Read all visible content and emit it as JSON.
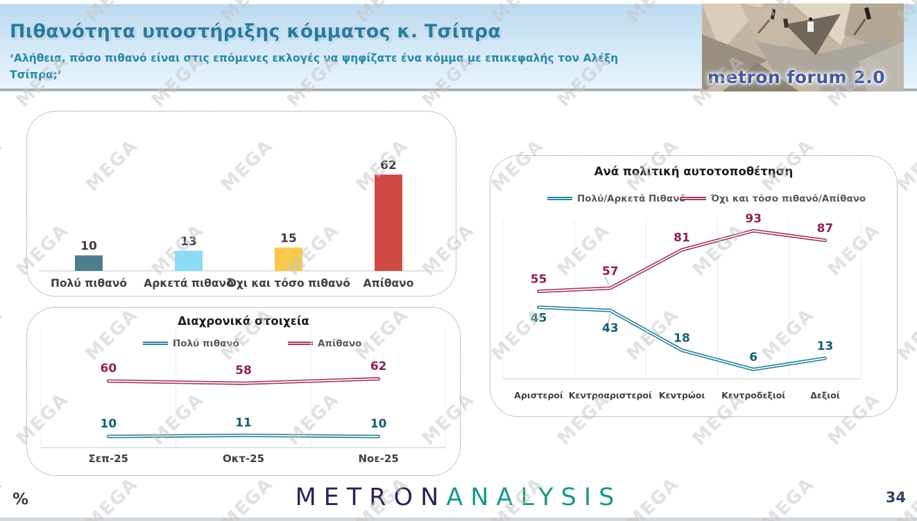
{
  "header": {
    "title": "Πιθανότητα υποστήριξης κόμματος κ. Τσίπρα",
    "subtitle": "‘Αλήθεια, πόσο πιθανό είναι στις επόμενες εκλογές να ψηφίζατε ένα κόμμα με επικεφαλής τον Αλέξη Τσίπρα;’",
    "logo_text": "metron forum 2.0"
  },
  "watermark": {
    "text": "MEGA"
  },
  "footer": {
    "unit_label": "%",
    "brand_primary": "METRON",
    "brand_secondary": "ANALYSIS",
    "page_number": "34"
  },
  "colors": {
    "teal_line": "#2f8299",
    "teal_label": "#155e70",
    "maroon_line": "#a23b63",
    "maroon_label": "#8e2155",
    "value_label": "#3f3f3f",
    "category_label": "#404040",
    "panel_border": "#5d93ab",
    "header_title": "#2a7aa0"
  },
  "chart_data": [
    {
      "id": "likelihood_bars",
      "type": "bar",
      "title": "",
      "categories": [
        "Πολύ πιθανό",
        "Αρκετά πιθανό",
        "Όχι και τόσο πιθανό",
        "Απίθανο"
      ],
      "values": [
        10,
        13,
        15,
        62
      ],
      "bar_colors": [
        "#4e7e8e",
        "#8adcf5",
        "#f9c84d",
        "#d04a44"
      ],
      "ylim": [
        0,
        70
      ],
      "grid": false,
      "value_labels": true
    },
    {
      "id": "trend_lines",
      "type": "line",
      "title": "Διαχρονικά στοιχεία",
      "categories": [
        "Σεπ-25",
        "Οκτ-25",
        "Νοε-25"
      ],
      "series": [
        {
          "name": "Πολύ πιθανό",
          "values": [
            10,
            11,
            10
          ],
          "color": "#2f8299",
          "label_color": "#155e70"
        },
        {
          "name": "Απίθανο",
          "values": [
            60,
            58,
            62
          ],
          "color": "#a23b63",
          "label_color": "#8e2155"
        }
      ],
      "ylim": [
        0,
        100
      ],
      "grid": true,
      "legend_position": "top"
    },
    {
      "id": "political_lines",
      "type": "line",
      "title": "Ανά πολιτική αυτοτοποθέτηση",
      "categories": [
        "Αριστεροί",
        "Κεντροαριστεροί",
        "Κεντρώοι",
        "Κεντροδεξιοί",
        "Δεξιοί"
      ],
      "series": [
        {
          "name": "Πολύ/Αρκετά Πιθανό",
          "values": [
            45,
            43,
            18,
            6,
            13
          ],
          "color": "#2f8299",
          "label_color": "#155e70",
          "label_side": [
            "below",
            "below",
            "above",
            "above",
            "above"
          ],
          "leader_points": [
            1
          ]
        },
        {
          "name": "Όχι και τόσο πιθανό/Απίθανο",
          "values": [
            55,
            57,
            81,
            93,
            87
          ],
          "color": "#a23b63",
          "label_color": "#8e2155",
          "label_side": [
            "above",
            "raised",
            "above",
            "above",
            "above"
          ],
          "leader_points": [
            1
          ]
        }
      ],
      "ylim": [
        0,
        100
      ],
      "grid": true,
      "legend_position": "top"
    }
  ]
}
